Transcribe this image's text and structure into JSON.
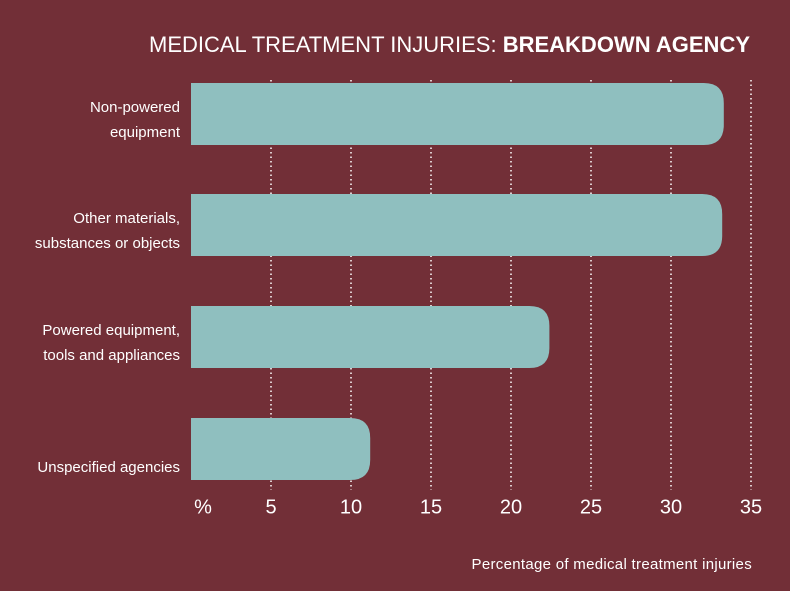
{
  "chart_data": {
    "type": "hbar",
    "title": "MEDICAL TREATMENT INJURIES:",
    "title_bold": "BREAKDOWN AGENCY",
    "x_label": "Percentage of medical treatment injuries",
    "categories": [
      "Non-powered\nequipment",
      "Other materials,\nsubstances or objects",
      "Powered equipment,\ntools and appliances",
      "Unspecified agencies"
    ],
    "values": [
      33.3,
      33.2,
      22.4,
      11.2
    ],
    "color": "#8fbfbf",
    "xlim": [
      0,
      35
    ],
    "xticks": [
      {
        "value": 0,
        "label": "%"
      },
      5,
      10,
      15,
      20,
      25,
      30,
      35
    ],
    "grid": true
  }
}
